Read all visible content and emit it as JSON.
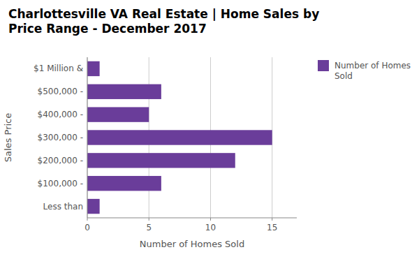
{
  "chart_data": {
    "type": "bar",
    "orientation": "horizontal",
    "title": "Charlottesville VA Real Estate | Home Sales by\nPrice Range - December 2017",
    "categories": [
      "Less than",
      "$100,000 -",
      "$200,000 -",
      "$300,000 -",
      "$400,000 -",
      "$500,000 -",
      "$1 Million &"
    ],
    "series": [
      {
        "name": "Number of Homes\nSold",
        "color": "#6A3D9A",
        "values": [
          1,
          6,
          12,
          15,
          5,
          6,
          1
        ]
      }
    ],
    "xlabel": "Number of Homes Sold",
    "ylabel": "Sales Price",
    "xlim": [
      0,
      17
    ],
    "xticks": [
      0,
      5,
      10,
      15
    ],
    "grid": true,
    "legend": "right"
  }
}
